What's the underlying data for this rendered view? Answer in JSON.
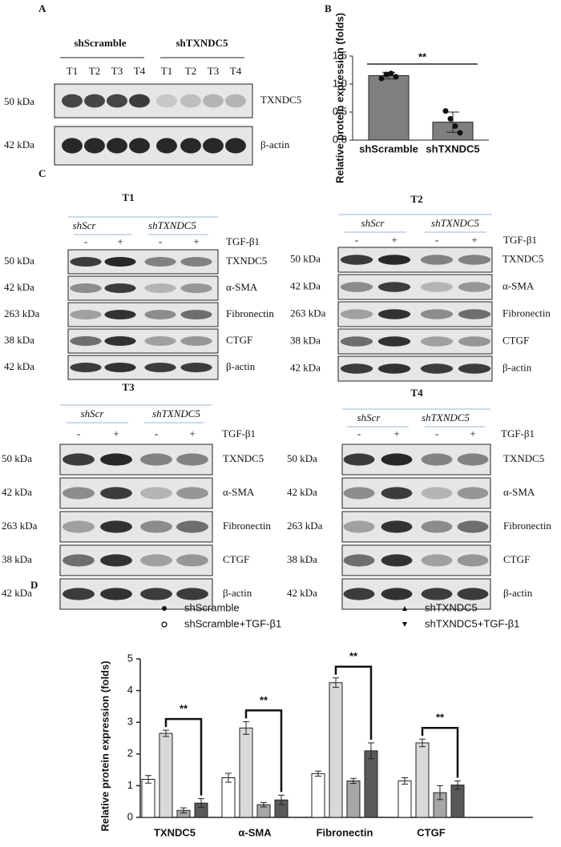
{
  "panel_a": {
    "label": "A",
    "groups": [
      "shScramble",
      "shTXNDC5"
    ],
    "lanes": [
      "T1",
      "T2",
      "T3",
      "T4",
      "T1",
      "T2",
      "T3",
      "T4"
    ],
    "markers": [
      "50 kDa",
      "42 kDa"
    ],
    "proteins": [
      "TXNDC5",
      "β-actin"
    ]
  },
  "panel_c": {
    "label": "C",
    "blots": [
      {
        "title": "T1",
        "groups": [
          "shScr",
          "shTXNDC5"
        ],
        "treatment": [
          "-",
          "+",
          "-",
          "+"
        ],
        "treatment_label": "TGF-β1",
        "markers": [
          "50 kDa",
          "42 kDa",
          "263 kDa",
          "38 kDa",
          "42 kDa"
        ],
        "proteins": [
          "TXNDC5",
          "α-SMA",
          "Fibronectin",
          "CTGF",
          "β-actin"
        ]
      },
      {
        "title": "T2",
        "groups": [
          "shScr",
          "shTXNDC5"
        ],
        "treatment": [
          "-",
          "+",
          "-",
          "+"
        ],
        "treatment_label": "TGF-β1",
        "markers": [
          "50 kDa",
          "42 kDa",
          "263 kDa",
          "38 kDa",
          "42 kDa"
        ],
        "proteins": [
          "TXNDC5",
          "α-SMA",
          "Fibronectin",
          "CTGF",
          "β-actin"
        ]
      },
      {
        "title": "T3",
        "groups": [
          "shScr",
          "shTXNDC5"
        ],
        "treatment": [
          "-",
          "+",
          "-",
          "+"
        ],
        "treatment_label": "TGF-β1",
        "markers": [
          "50 kDa",
          "42 kDa",
          "263 kDa",
          "38 kDa",
          "42 kDa"
        ],
        "proteins": [
          "TXNDC5",
          "α-SMA",
          "Fibronectin",
          "CTGF",
          "β-actin"
        ]
      },
      {
        "title": "T4",
        "groups": [
          "shScr",
          "shTXNDC5"
        ],
        "treatment": [
          "-",
          "+",
          "-",
          "+"
        ],
        "treatment_label": "TGF-β1",
        "markers": [
          "50 kDa",
          "42 kDa",
          "263 kDa",
          "38 kDa",
          "42 kDa"
        ],
        "proteins": [
          "TXNDC5",
          "α-SMA",
          "Fibronectin",
          "CTGF",
          "β-actin"
        ]
      }
    ]
  },
  "chart_data": [
    {
      "type": "bar",
      "label": "B",
      "y_label": "Relative protein expression (folds)",
      "categories": [
        "shScramble",
        "shTXNDC5"
      ],
      "values": [
        1.15,
        0.32
      ],
      "errors": [
        0.06,
        0.18
      ],
      "points": [
        [
          1.1,
          1.17,
          1.19,
          1.13
        ],
        [
          0.52,
          0.38,
          0.25,
          0.13
        ]
      ],
      "color": "#7f7f7f",
      "ylim": [
        0,
        1.5
      ],
      "yticks": [
        {
          "value": 0,
          "label": "0.0"
        },
        {
          "value": 0.5,
          "label": "0.5"
        },
        {
          "value": 1,
          "label": "1.0"
        },
        {
          "value": 1.5,
          "label": "1.5"
        }
      ],
      "annotation": "**"
    },
    {
      "type": "grouped-bar",
      "label": "D",
      "y_label": "Relative protein expression (folds)",
      "categories": [
        "TXNDC5",
        "α-SMA",
        "Fibronectin",
        "CTGF"
      ],
      "series": [
        {
          "name": "shScramble",
          "color": "#ffffff",
          "values": [
            1.2,
            1.25,
            1.38,
            1.15
          ],
          "errors": [
            0.12,
            0.14,
            0.08,
            0.1
          ]
        },
        {
          "name": "shScramble+TGF-β1",
          "color": "#d9d9d9",
          "values": [
            2.65,
            2.82,
            4.25,
            2.35
          ],
          "errors": [
            0.1,
            0.2,
            0.15,
            0.12
          ]
        },
        {
          "name": "shTXNDC5",
          "color": "#a6a6a6",
          "values": [
            0.22,
            0.4,
            1.15,
            0.78
          ],
          "errors": [
            0.08,
            0.07,
            0.08,
            0.22
          ]
        },
        {
          "name": "shTXNDC5+TGF-β1",
          "color": "#595959",
          "values": [
            0.45,
            0.55,
            2.1,
            1.02
          ],
          "errors": [
            0.14,
            0.15,
            0.25,
            0.13
          ]
        }
      ],
      "ylim": [
        0,
        5
      ],
      "yticks": [
        0,
        1,
        2,
        3,
        4,
        5
      ],
      "annotations": [
        "**",
        "**",
        "**",
        "**"
      ]
    }
  ]
}
